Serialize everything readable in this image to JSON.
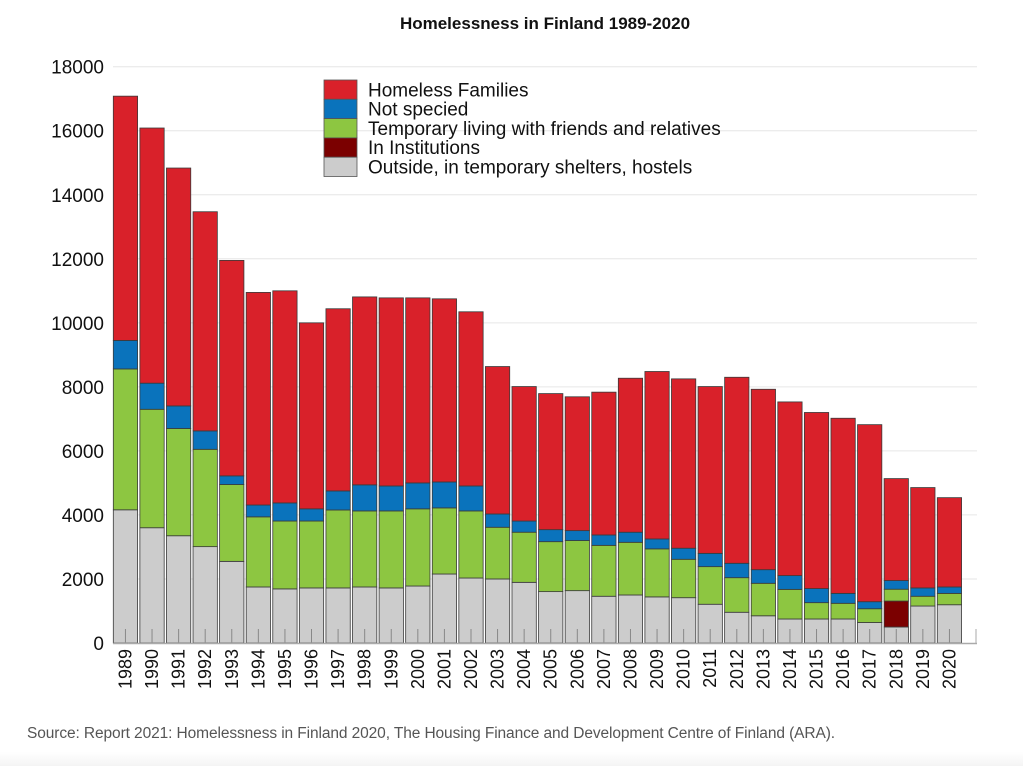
{
  "chart_data": {
    "type": "bar",
    "stacked": true,
    "title": "Homelessness in Finland 1989-2020",
    "xlabel": "",
    "ylabel": "",
    "ylim": [
      0,
      18000
    ],
    "yticks": [
      0,
      2000,
      4000,
      6000,
      8000,
      10000,
      12000,
      14000,
      16000,
      18000
    ],
    "grid": true,
    "legend_position": "top-center",
    "categories": [
      "1989",
      "1990",
      "1991",
      "1992",
      "1993",
      "1994",
      "1995",
      "1996",
      "1997",
      "1998",
      "1999",
      "2000",
      "2001",
      "2002",
      "2003",
      "2004",
      "2005",
      "2006",
      "2007",
      "2008",
      "2009",
      "2010",
      "2011",
      "2012",
      "2013",
      "2014",
      "2015",
      "2016",
      "2017",
      "2018",
      "2019",
      "2020"
    ],
    "series": [
      {
        "name": "Outside, in temporary shelters, hostels",
        "color": "#cccccc",
        "values": [
          4160,
          3600,
          3350,
          3010,
          2550,
          1750,
          1690,
          1720,
          1720,
          1750,
          1720,
          1780,
          2155,
          2030,
          2000,
          1895,
          1605,
          1635,
          1460,
          1500,
          1440,
          1415,
          1210,
          960,
          850,
          750,
          750,
          750,
          640,
          500,
          1155,
          1195
        ]
      },
      {
        "name": "In Institutions",
        "color": "#7b0000",
        "values": [
          0,
          0,
          0,
          0,
          0,
          0,
          0,
          0,
          0,
          0,
          0,
          0,
          0,
          0,
          0,
          0,
          0,
          0,
          0,
          0,
          0,
          0,
          0,
          0,
          0,
          0,
          0,
          0,
          0,
          810,
          0,
          0
        ]
      },
      {
        "name": "Temporary living with friends and relatives",
        "color": "#8dc641",
        "values": [
          4400,
          3700,
          3350,
          3040,
          2400,
          2190,
          2120,
          2090,
          2435,
          2375,
          2405,
          2410,
          2065,
          2095,
          1615,
          1565,
          1560,
          1565,
          1590,
          1645,
          1500,
          1200,
          1175,
          1080,
          1015,
          925,
          510,
          490,
          430,
          370,
          305,
          355
        ]
      },
      {
        "name": "Not specied",
        "color": "#0a73bc",
        "values": [
          890,
          815,
          705,
          575,
          270,
          370,
          565,
          380,
          595,
          815,
          780,
          810,
          810,
          780,
          415,
          350,
          375,
          310,
          325,
          315,
          310,
          345,
          415,
          450,
          425,
          430,
          440,
          310,
          220,
          270,
          260,
          200
        ]
      },
      {
        "name": "Homeless Families",
        "color": "#d9212a",
        "values": [
          7630,
          7970,
          7430,
          6845,
          6730,
          6640,
          6625,
          5810,
          5690,
          5870,
          5875,
          5780,
          5720,
          5440,
          4605,
          4200,
          4250,
          4180,
          4460,
          4810,
          5230,
          5290,
          5210,
          5810,
          5635,
          5425,
          5500,
          5470,
          5530,
          3185,
          3135,
          2790
        ]
      }
    ],
    "legend_order": [
      "Homeless Families",
      "Not specied",
      "Temporary living with friends and relatives",
      "In Institutions",
      "Outside, in temporary shelters, hostels"
    ]
  },
  "source": "Source: Report 2021: Homelessness in Finland 2020, The Housing Finance and Development Centre of Finland (ARA)."
}
